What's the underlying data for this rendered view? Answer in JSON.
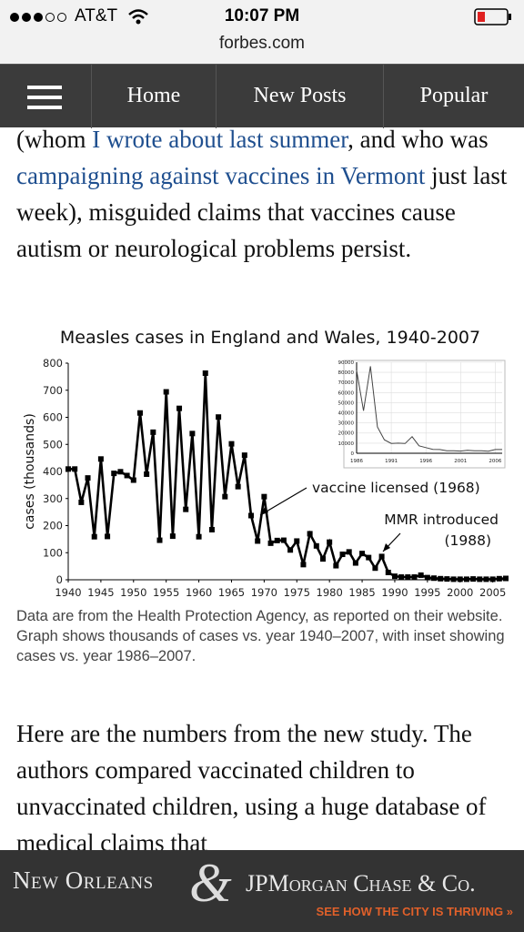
{
  "status_bar": {
    "carrier": "AT&T",
    "time": "10:07 PM",
    "url": "forbes.com"
  },
  "nav": {
    "items": [
      "Home",
      "New Posts",
      "Popular"
    ]
  },
  "paragraph_1": [
    {
      "text": "(whom ",
      "link": false
    },
    {
      "text": "I wrote about last summer",
      "link": true
    },
    {
      "text": ", and who was ",
      "link": false
    },
    {
      "text": "campaigning against vaccines in Vermont",
      "link": true
    },
    {
      "text": " just last week), misguided claims that vaccines cause autism or neurological problems persist.",
      "link": false
    }
  ],
  "chart_data": [
    {
      "type": "line",
      "title": "Measles cases in England and Wales, 1940-2007",
      "y_label": "cases (thousands)",
      "color": "#000000",
      "x": [
        1940,
        1941,
        1942,
        1943,
        1944,
        1945,
        1946,
        1947,
        1948,
        1949,
        1950,
        1951,
        1952,
        1953,
        1954,
        1955,
        1956,
        1957,
        1958,
        1959,
        1960,
        1961,
        1962,
        1963,
        1964,
        1965,
        1966,
        1967,
        1968,
        1969,
        1970,
        1971,
        1972,
        1973,
        1974,
        1975,
        1976,
        1977,
        1978,
        1979,
        1980,
        1981,
        1982,
        1983,
        1984,
        1985,
        1986,
        1987,
        1988,
        1989,
        1990,
        1991,
        1992,
        1993,
        1994,
        1995,
        1996,
        1997,
        1998,
        1999,
        2000,
        2001,
        2002,
        2003,
        2004,
        2005,
        2006,
        2007
      ],
      "values": [
        409,
        409,
        286,
        376,
        159,
        446,
        160,
        393,
        399,
        385,
        368,
        616,
        390,
        545,
        146,
        694,
        161,
        633,
        260,
        540,
        159,
        763,
        185,
        601,
        307,
        502,
        344,
        460,
        237,
        143,
        307,
        135,
        145,
        146,
        110,
        143,
        56,
        170,
        125,
        77,
        139,
        52,
        94,
        103,
        62,
        97,
        82,
        43,
        86,
        27,
        13,
        10,
        10,
        10,
        17,
        8,
        6,
        4,
        3,
        2,
        2,
        2,
        3,
        2,
        2,
        2,
        4,
        5
      ],
      "xlim": [
        1940,
        2007
      ],
      "xticks": [
        1940,
        1945,
        1950,
        1955,
        1960,
        1965,
        1970,
        1975,
        1980,
        1985,
        1990,
        1995,
        2000,
        2005
      ],
      "ylim": [
        0,
        800
      ],
      "yticks": [
        0,
        100,
        200,
        300,
        400,
        500,
        600,
        700,
        800
      ],
      "annotations": [
        "vaccine licensed (1968)",
        "MMR introduced",
        "(1988)"
      ]
    },
    {
      "type": "line",
      "color": "#444444",
      "x": [
        1986,
        1987,
        1988,
        1989,
        1990,
        1991,
        1992,
        1993,
        1994,
        1995,
        1996,
        1997,
        1998,
        1999,
        2000,
        2001,
        2002,
        2003,
        2004,
        2005,
        2006,
        2007
      ],
      "values": [
        82000,
        42000,
        86000,
        26000,
        13300,
        9700,
        10000,
        9600,
        16400,
        7400,
        5600,
        3900,
        3700,
        2400,
        2400,
        2200,
        3000,
        2500,
        2400,
        2100,
        3700,
        3700
      ],
      "xlim": [
        1986,
        2007
      ],
      "xticks": [
        1986,
        1991,
        1996,
        2001,
        2006
      ],
      "ylim": [
        0,
        90000
      ],
      "yticks": [
        0,
        10000,
        20000,
        30000,
        40000,
        50000,
        60000,
        70000,
        80000,
        90000
      ],
      "grid": true
    }
  ],
  "caption": "Data are from the Health Protection Agency, as reported on their website. Graph shows thousands of cases vs. year 1940–2007, with inset showing cases vs. year 1986–2007.",
  "paragraph_2": "Here are the numbers from the new study. The authors compared vaccinated children to unvaccinated children, using a huge database of medical claims that",
  "ad": {
    "left": "New Orleans",
    "amp": "&",
    "right": "JPMorgan Chase & Co.",
    "cta": "SEE HOW THE CITY IS THRIVING »"
  }
}
